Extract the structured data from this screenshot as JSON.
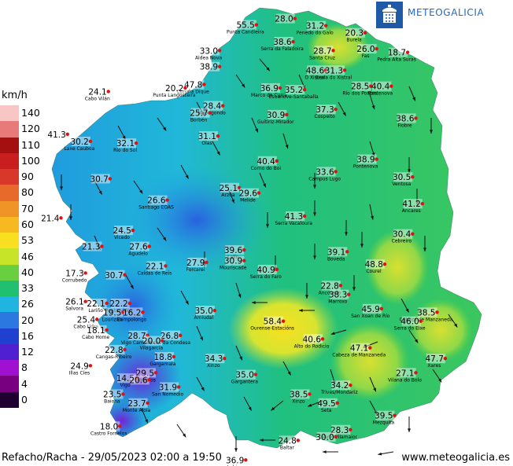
{
  "legend": {
    "unit": "km/h",
    "classes": [
      {
        "label": "140",
        "color": "#f9c6c6"
      },
      {
        "label": "120",
        "color": "#e87a7a"
      },
      {
        "label": "110",
        "color": "#a41010"
      },
      {
        "label": "100",
        "color": "#c81e1e"
      },
      {
        "label": "90",
        "color": "#d8382a"
      },
      {
        "label": "80",
        "color": "#e86a2a"
      },
      {
        "label": "70",
        "color": "#f09428"
      },
      {
        "label": "60",
        "color": "#f8b820"
      },
      {
        "label": "53",
        "color": "#f8e020"
      },
      {
        "label": "46",
        "color": "#c8e428"
      },
      {
        "label": "40",
        "color": "#68d040"
      },
      {
        "label": "33",
        "color": "#20c070"
      },
      {
        "label": "26",
        "color": "#20b4e0"
      },
      {
        "label": "20",
        "color": "#2a78e0"
      },
      {
        "label": "16",
        "color": "#2040d0"
      },
      {
        "label": "12",
        "color": "#5020d0"
      },
      {
        "label": "8",
        "color": "#a010d0"
      },
      {
        "label": "4",
        "color": "#780080"
      },
      {
        "label": "0",
        "color": "#200030"
      }
    ]
  },
  "brand": {
    "name": "METEOGALICIA",
    "box_color": "#1e5aa8",
    "text_color": "#2a68b5"
  },
  "caption": "Refacho/Racha - 29/05/2023 02:00 a 19:50",
  "website": "www.meteogalicia.es",
  "stations": [
    {
      "value": "55.5",
      "name": "Punta Candieira",
      "lon": -8.045,
      "lat": 43.705
    },
    {
      "value": "28.0",
      "name": "",
      "lon": -7.81,
      "lat": 43.74
    },
    {
      "value": "31.2",
      "name": "Penedo do Galo",
      "lon": -7.62,
      "lat": 43.7
    },
    {
      "value": "20.3",
      "name": "Burela",
      "lon": -7.38,
      "lat": 43.66
    },
    {
      "value": "38.6",
      "name": "Serra da Faladoira",
      "lon": -7.82,
      "lat": 43.61
    },
    {
      "value": "33.0",
      "name": "Aldea Nova",
      "lon": -8.27,
      "lat": 43.56
    },
    {
      "value": "28.7",
      "name": "Santa Cruz",
      "lon": -7.575,
      "lat": 43.56
    },
    {
      "value": "26.0",
      "name": "Fas",
      "lon": -7.31,
      "lat": 43.57
    },
    {
      "value": "18.7",
      "name": "Pedra Alta Suras",
      "lon": -7.12,
      "lat": 43.55
    },
    {
      "value": "38.9",
      "name": "",
      "lon": -8.27,
      "lat": 43.47
    },
    {
      "value": "48.6",
      "name": "O Xistral",
      "lon": -7.62,
      "lat": 43.45
    },
    {
      "value": "31.3",
      "name": "Serra do Xistral",
      "lon": -7.505,
      "lat": 43.45
    },
    {
      "value": "47.8",
      "name": "Coruña Dique",
      "lon": -8.365,
      "lat": 43.37
    },
    {
      "value": "24.1",
      "name": "Cabo Vilán",
      "lon": -8.95,
      "lat": 43.33
    },
    {
      "value": "20.2",
      "name": "Punta Langosteira",
      "lon": -8.48,
      "lat": 43.35
    },
    {
      "value": "36.9",
      "name": "Marco da Curra",
      "lon": -7.9,
      "lat": 43.35
    },
    {
      "value": "35.2",
      "name": "Esbanove-Santaballa",
      "lon": -7.75,
      "lat": 43.34
    },
    {
      "value": "28.5",
      "name": "Río dos Pontes",
      "lon": -7.345,
      "lat": 43.36
    },
    {
      "value": "40.4",
      "name": "Pontenova",
      "lon": -7.22,
      "lat": 43.36
    },
    {
      "value": "28.4",
      "name": "Mabegondo",
      "lon": -8.25,
      "lat": 43.25
    },
    {
      "value": "25.7",
      "name": "Borbén",
      "lon": -8.33,
      "lat": 43.21
    },
    {
      "value": "30.9",
      "name": "Guitiriz-Mirador",
      "lon": -7.86,
      "lat": 43.2
    },
    {
      "value": "37.3",
      "name": "Cospeito",
      "lon": -7.56,
      "lat": 43.23
    },
    {
      "value": "38.6",
      "name": "Fiobre",
      "lon": -7.07,
      "lat": 43.18
    },
    {
      "value": "41.3",
      "name": "",
      "lon": -9.2,
      "lat": 43.09
    },
    {
      "value": "30.2",
      "name": "Laxe Cauboa",
      "lon": -9.06,
      "lat": 43.05
    },
    {
      "value": "32.1",
      "name": "Río do Sol",
      "lon": -8.78,
      "lat": 43.04
    },
    {
      "value": "31.1",
      "name": "Olas",
      "lon": -8.28,
      "lat": 43.08
    },
    {
      "value": "40.4",
      "name": "Corno do Boi",
      "lon": -7.92,
      "lat": 42.94
    },
    {
      "value": "38.9",
      "name": "Pontenova",
      "lon": -7.31,
      "lat": 42.95
    },
    {
      "value": "33.6",
      "name": "Campus Lugo",
      "lon": -7.56,
      "lat": 42.88
    },
    {
      "value": "30.7",
      "name": "",
      "lon": -8.94,
      "lat": 42.84
    },
    {
      "value": "30.5",
      "name": "Ventosa",
      "lon": -7.09,
      "lat": 42.85
    },
    {
      "value": "25.1",
      "name": "Arzúa",
      "lon": -8.15,
      "lat": 42.79
    },
    {
      "value": "29.6",
      "name": "Melide",
      "lon": -8.03,
      "lat": 42.76
    },
    {
      "value": "26.6",
      "name": "Santiago EOAS",
      "lon": -8.59,
      "lat": 42.72
    },
    {
      "value": "41.2",
      "name": "Ancares",
      "lon": -7.03,
      "lat": 42.7
    },
    {
      "value": "21.4",
      "name": "",
      "lon": -9.24,
      "lat": 42.62
    },
    {
      "value": "41.3",
      "name": "Serra Vacaloura",
      "lon": -7.75,
      "lat": 42.63
    },
    {
      "value": "24.5",
      "name": "Vicedo",
      "lon": -8.8,
      "lat": 42.55
    },
    {
      "value": "30.4",
      "name": "Cebreiro",
      "lon": -7.09,
      "lat": 42.53
    },
    {
      "value": "21.3",
      "name": "",
      "lon": -8.99,
      "lat": 42.46
    },
    {
      "value": "27.6",
      "name": "Agudelo",
      "lon": -8.7,
      "lat": 42.46
    },
    {
      "value": "39.6",
      "name": "Lalín",
      "lon": -8.12,
      "lat": 42.44
    },
    {
      "value": "39.1",
      "name": "Boveda",
      "lon": -7.49,
      "lat": 42.43
    },
    {
      "value": "30.9",
      "name": "Mouriscade",
      "lon": -8.12,
      "lat": 42.38
    },
    {
      "value": "22.1",
      "name": "Caldas de Reis",
      "lon": -8.6,
      "lat": 42.35
    },
    {
      "value": "27.9",
      "name": "Forcarei",
      "lon": -8.35,
      "lat": 42.37
    },
    {
      "value": "40.9",
      "name": "Serra do Faro",
      "lon": -7.92,
      "lat": 42.33
    },
    {
      "value": "48.8",
      "name": "Courel",
      "lon": -7.26,
      "lat": 42.36
    },
    {
      "value": "17.3",
      "name": "Corrubedo",
      "lon": -9.09,
      "lat": 42.31
    },
    {
      "value": "30.7",
      "name": "",
      "lon": -8.85,
      "lat": 42.3
    },
    {
      "value": "22.8",
      "name": "Ancorado",
      "lon": -7.53,
      "lat": 42.24
    },
    {
      "value": "38.3",
      "name": "Marroxo",
      "lon": -7.48,
      "lat": 42.19
    },
    {
      "value": "26.1",
      "name": "Salvora",
      "lon": -9.09,
      "lat": 42.15
    },
    {
      "value": "22.1",
      "name": "Lariño",
      "lon": -8.96,
      "lat": 42.14
    },
    {
      "value": "22.2",
      "name": "Pontevedra",
      "lon": -8.82,
      "lat": 42.14
    },
    {
      "value": "45.9",
      "name": "San Xoan de Río",
      "lon": -7.28,
      "lat": 42.11
    },
    {
      "value": "35.0",
      "name": "Amiudal",
      "lon": -8.3,
      "lat": 42.1
    },
    {
      "value": "38.5",
      "name": "Cabeza de Manzaneda",
      "lon": -6.94,
      "lat": 42.09
    },
    {
      "value": "19.5",
      "name": "Lourizán",
      "lon": -8.86,
      "lat": 42.09
    },
    {
      "value": "16.2",
      "name": "Campolongo",
      "lon": -8.74,
      "lat": 42.09
    },
    {
      "value": "25.4",
      "name": "Cabo Udra",
      "lon": -9.02,
      "lat": 42.05
    },
    {
      "value": "58.4",
      "name": "Ourense-Estacións",
      "lon": -7.88,
      "lat": 42.04
    },
    {
      "value": "46.0",
      "name": "Serra do Eixe",
      "lon": -7.04,
      "lat": 42.04
    },
    {
      "value": "18.1",
      "name": "Cabo Home",
      "lon": -8.96,
      "lat": 41.99
    },
    {
      "value": "28.7",
      "name": "Vigo Campus",
      "lon": -8.71,
      "lat": 41.96
    },
    {
      "value": "26.8",
      "name": "Arcos da Condesa",
      "lon": -8.51,
      "lat": 41.96
    },
    {
      "value": "20.0",
      "name": "Vilagarcía",
      "lon": -8.62,
      "lat": 41.93
    },
    {
      "value": "40.6",
      "name": "Alto do Rodicio",
      "lon": -7.64,
      "lat": 41.94
    },
    {
      "value": "47.1",
      "name": "Cabeza de Manzaneda",
      "lon": -7.35,
      "lat": 41.89
    },
    {
      "value": "22.8",
      "name": "Cangas-Ribeiro",
      "lon": -8.85,
      "lat": 41.88
    },
    {
      "value": "18.8",
      "name": "Gargamala",
      "lon": -8.55,
      "lat": 41.84
    },
    {
      "value": "34.3",
      "name": "Xinzo",
      "lon": -8.24,
      "lat": 41.83
    },
    {
      "value": "24.9",
      "name": "Illas Cíes",
      "lon": -9.06,
      "lat": 41.79
    },
    {
      "value": "29.5",
      "name": "Castrelos",
      "lon": -8.66,
      "lat": 41.75
    },
    {
      "value": "14.5",
      "name": "Vigo",
      "lon": -8.78,
      "lat": 41.72
    },
    {
      "value": "20.6",
      "name": "",
      "lon": -8.7,
      "lat": 41.71
    },
    {
      "value": "35.0",
      "name": "Gargantera",
      "lon": -8.05,
      "lat": 41.74
    },
    {
      "value": "27.1",
      "name": "Vilana do Bolo",
      "lon": -7.07,
      "lat": 41.75
    },
    {
      "value": "47.7",
      "name": "Xares",
      "lon": -6.89,
      "lat": 41.83
    },
    {
      "value": "31.9",
      "name": "San Nomedio",
      "lon": -8.52,
      "lat": 41.67
    },
    {
      "value": "34.2",
      "name": "Trives/Mondariz",
      "lon": -7.47,
      "lat": 41.68
    },
    {
      "value": "23.5",
      "name": "Baiona",
      "lon": -8.86,
      "lat": 41.63
    },
    {
      "value": "38.5",
      "name": "Xinzo",
      "lon": -7.72,
      "lat": 41.63
    },
    {
      "value": "23.7",
      "name": "Monte Aloia",
      "lon": -8.71,
      "lat": 41.58
    },
    {
      "value": "49.5",
      "name": "Seta",
      "lon": -7.55,
      "lat": 41.58
    },
    {
      "value": "39.5",
      "name": "Mezquita",
      "lon": -7.2,
      "lat": 41.51
    },
    {
      "value": "18.0",
      "name": "Castro Fornelos",
      "lon": -8.88,
      "lat": 41.45
    },
    {
      "value": "28.3",
      "name": "Verín-Vilamaior",
      "lon": -7.47,
      "lat": 41.43
    },
    {
      "value": "30.0",
      "name": "",
      "lon": -7.56,
      "lat": 41.39
    },
    {
      "value": "24.8",
      "name": "Baltar",
      "lon": -7.79,
      "lat": 41.37
    },
    {
      "value": "36.9",
      "name": "Lobios",
      "lon": -8.11,
      "lat": 41.26
    }
  ]
}
